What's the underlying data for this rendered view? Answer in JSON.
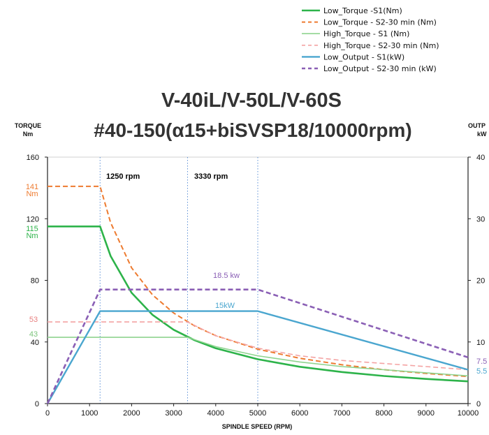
{
  "chart_data": {
    "type": "line",
    "title": "V-40iL/V-50L/V-60S",
    "subtitle": "#40-150(α15+biSVSP18/10000rpm)",
    "xlabel": "SPINDLE SPEED (RPM)",
    "ylabel_left": [
      "TORQUE",
      "Nm"
    ],
    "ylabel_right": [
      "OUTP",
      "kW"
    ],
    "xlim": [
      0,
      10000
    ],
    "ylim_left": [
      0,
      160
    ],
    "ylim_right": [
      0,
      40
    ],
    "x_ticks": [
      "0",
      "1000",
      "2000",
      "3000",
      "4000",
      "5000",
      "6000",
      "7000",
      "8000",
      "9000",
      "10000"
    ],
    "y_ticks_left": [
      "0",
      "40",
      "80",
      "120",
      "160"
    ],
    "y_ticks_right": [
      "0",
      "10",
      "20",
      "30",
      "40"
    ],
    "grid": "vertical dotted at 1250 and 3330 and 5000 rpm",
    "legend_position": "top-right",
    "series": [
      {
        "name": "Low_Torque -S1(Nm)",
        "axis": "left",
        "color": "#2db34a",
        "dash": "solid",
        "width": 2.6,
        "x": [
          0,
          1250,
          1500,
          2000,
          2500,
          3000,
          3500,
          4000,
          5000,
          6000,
          7000,
          8000,
          9000,
          10000
        ],
        "y": [
          115,
          115,
          95.8,
          71.9,
          57.5,
          47.9,
          41.1,
          35.9,
          28.8,
          23.9,
          20.5,
          17.9,
          16,
          14.4
        ]
      },
      {
        "name": "Low_Torque -  S2-30 min (Nm)",
        "axis": "left",
        "color": "#ee7b30",
        "dash": "dashed",
        "width": 2,
        "x": [
          0,
          1250,
          1500,
          2000,
          2500,
          3000,
          3500,
          4000,
          5000,
          6000,
          7000,
          8000,
          9000,
          10000
        ],
        "y": [
          141,
          141,
          117.5,
          88.1,
          70.5,
          58.8,
          50.4,
          44.1,
          35.3,
          29.4,
          25.2,
          22,
          19.6,
          17.6
        ]
      },
      {
        "name": "High_Torque - S1 (Nm)",
        "axis": "left",
        "color": "#8fd48f",
        "dash": "solid",
        "width": 1.6,
        "x": [
          0,
          3330,
          4000,
          5000,
          6000,
          7000,
          8000,
          9000,
          10000
        ],
        "y": [
          43,
          43,
          37,
          31,
          27,
          24,
          22,
          20,
          18
        ]
      },
      {
        "name": "High_Torque - S2-30 min (Nm)",
        "axis": "left",
        "color": "#f4a3a3",
        "dash": "dashed",
        "width": 1.6,
        "x": [
          0,
          3330,
          4000,
          5000,
          6000,
          7000,
          8000,
          9000,
          10000
        ],
        "y": [
          53,
          53,
          44,
          36,
          31,
          28,
          26,
          24,
          22
        ]
      },
      {
        "name": "Low_Output - S1(kW)",
        "axis": "right",
        "color": "#4aa6cf",
        "dash": "solid",
        "width": 2.4,
        "x": [
          0,
          1250,
          5000,
          10000
        ],
        "y": [
          0,
          15,
          15,
          5.5
        ]
      },
      {
        "name": "Low_Output - S2-30 min (kW)",
        "axis": "right",
        "color": "#8a5fb5",
        "dash": "dashed",
        "width": 2.6,
        "x": [
          0,
          1250,
          5000,
          10000
        ],
        "y": [
          0,
          18.5,
          18.5,
          7.5
        ]
      }
    ],
    "annotations": {
      "rpm_1250": "1250 rpm",
      "rpm_3330": "3330 rpm",
      "out_s2": "18.5 kw",
      "out_s1": "15kW",
      "end_s2": "7.5",
      "end_s1": "5.5",
      "low_s2_value": "141",
      "low_s2_unit": "Nm",
      "low_s1_value": "115",
      "low_s1_unit": "Nm",
      "high_s2_value": "53",
      "high_s1_value": "43"
    },
    "annotation_colors": {
      "low_s2": "#ee7b30",
      "low_s1": "#2db34a",
      "high_s2": "#e88080",
      "high_s1": "#7cc47c",
      "out_s2": "#8a5fb5",
      "out_s1": "#4aa6cf"
    }
  }
}
